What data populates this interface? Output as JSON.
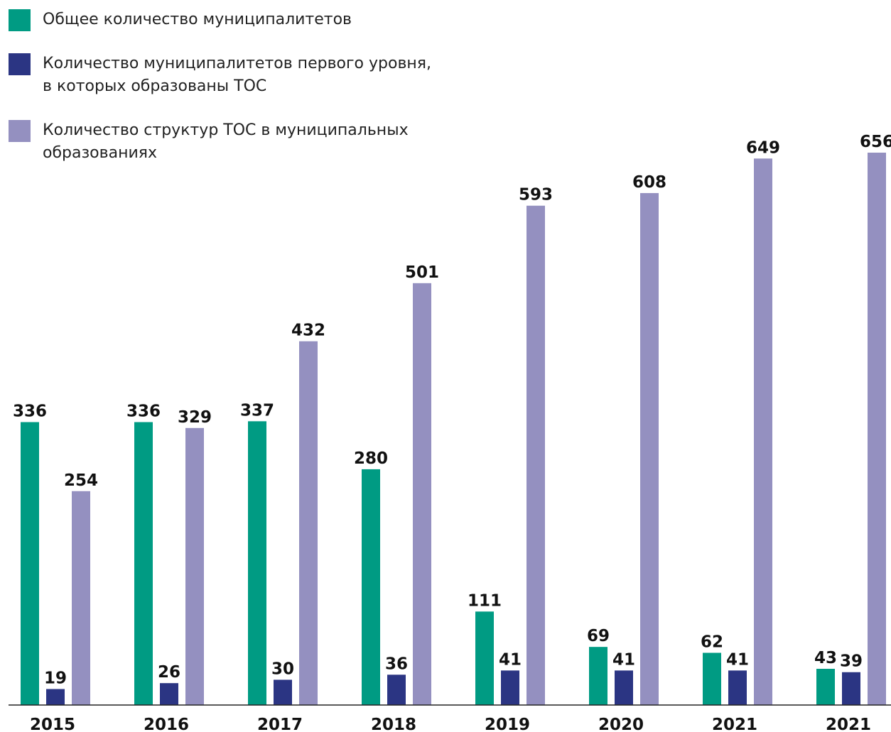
{
  "chart_data": {
    "type": "bar",
    "categories": [
      "2015",
      "2016",
      "2017",
      "2018",
      "2019",
      "2020",
      "2021",
      "2021"
    ],
    "series": [
      {
        "name": "Общее количество муниципалитетов",
        "color": "#009b83",
        "values": [
          336,
          336,
          337,
          280,
          111,
          69,
          62,
          43
        ]
      },
      {
        "name": "Количество муниципалитетов первого уровня, в которых образованы ТОС",
        "color": "#2b3583",
        "values": [
          19,
          26,
          30,
          36,
          41,
          41,
          41,
          39
        ]
      },
      {
        "name": "Количество структур ТОС в муниципальных образованиях",
        "color": "#9490c0",
        "values": [
          254,
          329,
          432,
          501,
          593,
          608,
          649,
          656
        ]
      }
    ],
    "legend": "top-left"
  }
}
